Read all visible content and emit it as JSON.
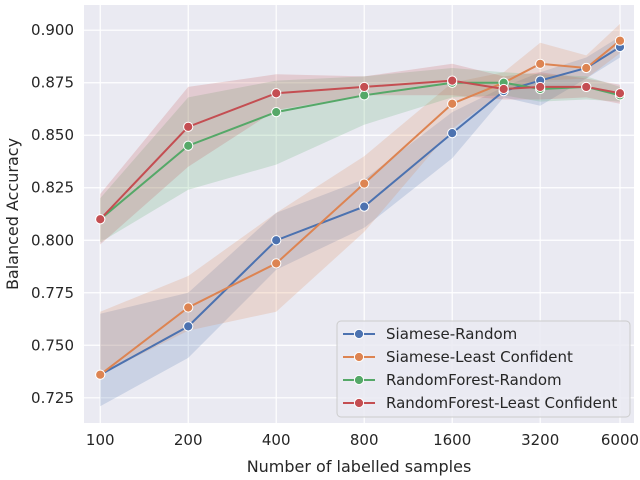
{
  "chart_data": {
    "type": "line",
    "title": "",
    "xlabel": "Number of labelled samples",
    "ylabel": "Balanced Accuracy",
    "x_scale": "log2",
    "xlim": [
      88,
      6700
    ],
    "ylim": [
      0.713,
      0.912
    ],
    "xticks": [
      100,
      200,
      400,
      800,
      1600,
      3200,
      6000
    ],
    "xtick_labels": [
      "100",
      "200",
      "400",
      "800",
      "1600",
      "3200",
      "6000"
    ],
    "yticks": [
      0.725,
      0.75,
      0.775,
      0.8,
      0.825,
      0.85,
      0.875,
      0.9
    ],
    "ytick_labels": [
      "0.725",
      "0.750",
      "0.775",
      "0.800",
      "0.825",
      "0.850",
      "0.875",
      "0.900"
    ],
    "grid": true,
    "legend_position": "bottom-right",
    "series": [
      {
        "name": "Siamese-Random",
        "color": "#4c72b0",
        "x": [
          100,
          200,
          400,
          800,
          1600,
          2400,
          3200,
          4600,
          6000
        ],
        "y": [
          0.736,
          0.759,
          0.8,
          0.816,
          0.851,
          0.871,
          0.876,
          0.882,
          0.892
        ],
        "ci_low": [
          0.721,
          0.744,
          0.786,
          0.806,
          0.839,
          0.868,
          0.864,
          0.877,
          0.887
        ],
        "ci_high": [
          0.765,
          0.775,
          0.813,
          0.829,
          0.861,
          0.873,
          0.88,
          0.887,
          0.897
        ]
      },
      {
        "name": "Siamese-Least Confident",
        "color": "#dd8452",
        "x": [
          100,
          200,
          400,
          800,
          1600,
          2400,
          3200,
          4600,
          6000
        ],
        "y": [
          0.736,
          0.768,
          0.789,
          0.827,
          0.865,
          0.875,
          0.884,
          0.882,
          0.895
        ],
        "ci_low": [
          0.736,
          0.757,
          0.766,
          0.804,
          0.853,
          0.871,
          0.876,
          0.877,
          0.889
        ],
        "ci_high": [
          0.766,
          0.783,
          0.813,
          0.84,
          0.875,
          0.88,
          0.894,
          0.888,
          0.903
        ]
      },
      {
        "name": "RandomForest-Random",
        "color": "#55a868",
        "x": [
          100,
          200,
          400,
          800,
          1600,
          2400,
          3200,
          4600,
          6000
        ],
        "y": [
          0.81,
          0.845,
          0.861,
          0.869,
          0.875,
          0.875,
          0.872,
          0.873,
          0.869
        ],
        "ci_low": [
          0.799,
          0.824,
          0.836,
          0.855,
          0.868,
          0.869,
          0.866,
          0.867,
          0.866
        ],
        "ci_high": [
          0.82,
          0.868,
          0.876,
          0.878,
          0.882,
          0.88,
          0.879,
          0.878,
          0.873
        ]
      },
      {
        "name": "RandomForest-Least Confident",
        "color": "#c44e52",
        "x": [
          100,
          200,
          400,
          800,
          1600,
          2400,
          3200,
          4600,
          6000
        ],
        "y": [
          0.81,
          0.854,
          0.87,
          0.873,
          0.876,
          0.872,
          0.873,
          0.873,
          0.87
        ],
        "ci_low": [
          0.798,
          0.835,
          0.862,
          0.869,
          0.869,
          0.867,
          0.867,
          0.868,
          0.865
        ],
        "ci_high": [
          0.822,
          0.873,
          0.879,
          0.878,
          0.884,
          0.878,
          0.88,
          0.877,
          0.874
        ]
      }
    ]
  }
}
